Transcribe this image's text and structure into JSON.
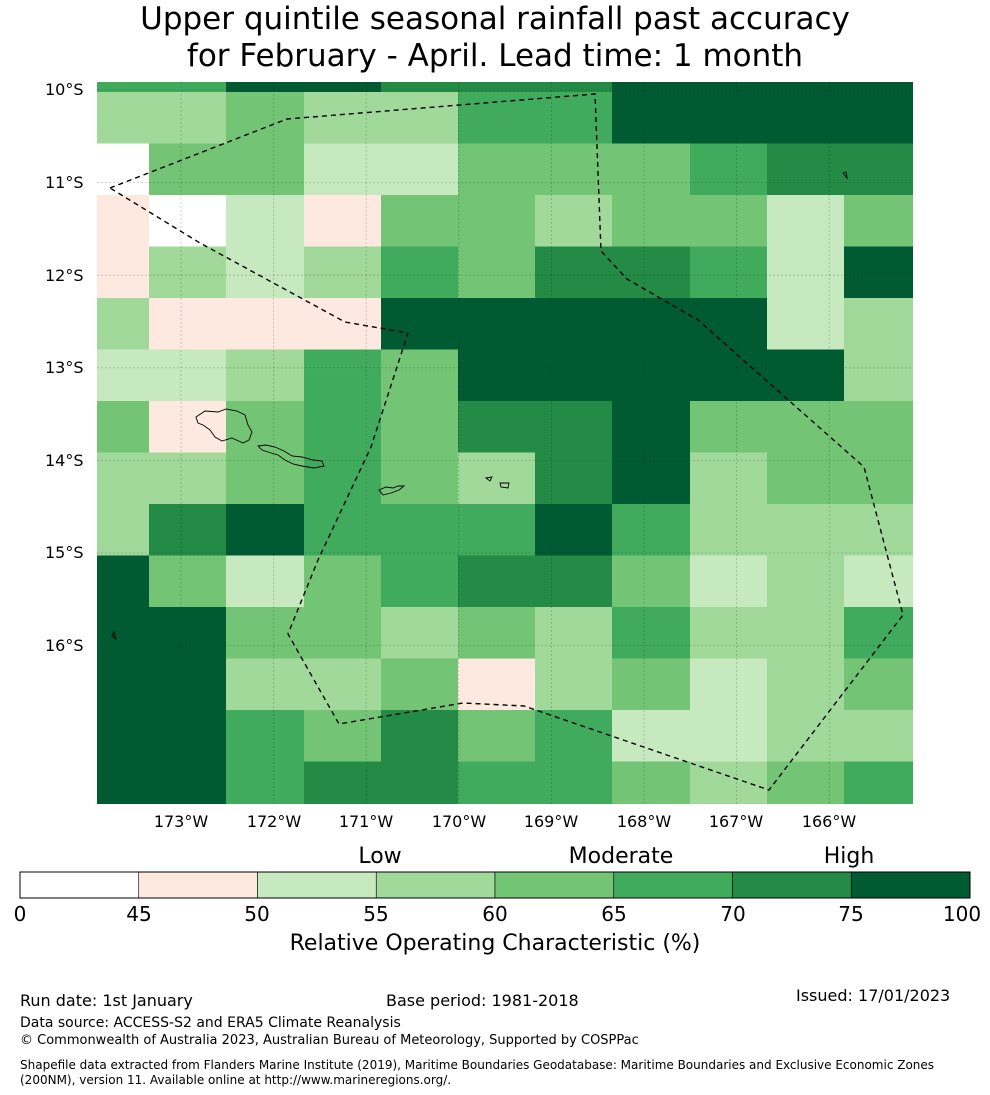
{
  "title": {
    "line1": "Upper quintile seasonal rainfall past accuracy",
    "line2": "for February - April. Lead time: 1 month"
  },
  "map": {
    "lat_labels": [
      "10°S",
      "11°S",
      "12°S",
      "13°S",
      "14°S",
      "15°S",
      "16°S"
    ],
    "lon_labels": [
      "173°W",
      "172°W",
      "171°W",
      "170°W",
      "169°W",
      "168°W",
      "167°W",
      "166°W"
    ],
    "palette": [
      "#ffffff",
      "#fee9e0",
      "#c7e9c0",
      "#a1d99b",
      "#74c476",
      "#41ab5d",
      "#238b45",
      "#005a32"
    ],
    "grid_levels": [
      [
        5,
        5,
        7,
        7,
        6,
        6,
        6,
        7,
        7,
        7,
        7
      ],
      [
        3,
        3,
        4,
        3,
        3,
        5,
        5,
        7,
        7,
        7,
        7
      ],
      [
        0,
        4,
        4,
        2,
        2,
        4,
        4,
        4,
        5,
        6,
        6
      ],
      [
        1,
        0,
        2,
        1,
        4,
        4,
        3,
        4,
        4,
        2,
        4
      ],
      [
        1,
        3,
        2,
        3,
        5,
        4,
        6,
        6,
        5,
        2,
        7
      ],
      [
        3,
        1,
        1,
        1,
        7,
        7,
        7,
        7,
        7,
        2,
        3
      ],
      [
        2,
        2,
        3,
        5,
        4,
        7,
        7,
        7,
        7,
        7,
        3
      ],
      [
        4,
        1,
        4,
        5,
        4,
        6,
        6,
        7,
        4,
        4,
        4
      ],
      [
        3,
        3,
        4,
        5,
        4,
        3,
        6,
        7,
        3,
        4,
        4
      ],
      [
        3,
        6,
        7,
        5,
        5,
        5,
        7,
        5,
        3,
        3,
        3
      ],
      [
        7,
        4,
        2,
        4,
        5,
        6,
        6,
        4,
        2,
        3,
        2
      ],
      [
        7,
        7,
        4,
        4,
        3,
        4,
        3,
        5,
        3,
        3,
        5
      ],
      [
        7,
        7,
        3,
        3,
        4,
        1,
        3,
        4,
        2,
        3,
        4
      ],
      [
        7,
        7,
        5,
        4,
        6,
        4,
        5,
        2,
        2,
        3,
        3
      ],
      [
        7,
        7,
        5,
        6,
        6,
        5,
        5,
        4,
        3,
        4,
        5
      ]
    ]
  },
  "legend": {
    "category_labels": [
      "Low",
      "Moderate",
      "High"
    ],
    "tick_labels": [
      "0",
      "45",
      "50",
      "55",
      "60",
      "65",
      "70",
      "75",
      "100"
    ],
    "title": "Relative Operating Characteristic (%)"
  },
  "footer": {
    "run_date": "Run date: 1st January",
    "base_period": "Base period: 1981-2018",
    "issued": "Issued: 17/01/2023",
    "data_source": "Data source: ACCESS-S2 and ERA5 Climate Reanalysis",
    "copyright": "© Commonwealth of Australia 2023, Australian Bureau of Meteorology, Supported by COSPPac",
    "shapefile": "Shapefile data extracted from Flanders Marine Institute (2019), Maritime Boundaries Geodatabase: Maritime Boundaries and Exclusive Economic Zones (200NM), version 11. Available online at http://www.marineregions.org/."
  }
}
